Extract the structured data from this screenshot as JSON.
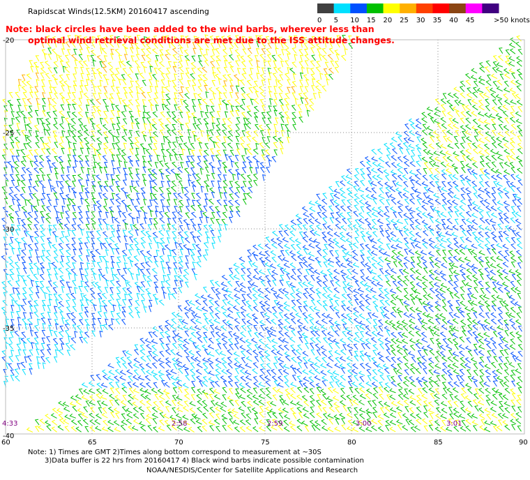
{
  "header": {
    "title": "Rapidscat Winds(12.5KM) 20160417 ascending"
  },
  "note": {
    "line1": "Note: black circles have been added to the wind barbs, wherever less than",
    "line2": "optimal wind retrieval conditions are met due to the ISS attitude changes."
  },
  "legend": {
    "unit_label": ">50 knots",
    "ticks": [
      "0",
      "5",
      "10",
      "15",
      "20",
      "25",
      "30",
      "35",
      "40",
      "45"
    ],
    "colors": [
      "#404040",
      "#00e0ff",
      "#0050ff",
      "#00c000",
      "#ffff00",
      "#ffb000",
      "#ff4000",
      "#ff0000",
      "#8b4513",
      "#ff00ff",
      "#400080"
    ]
  },
  "axes": {
    "lat_labels": [
      "-20",
      "-25",
      "-30",
      "-35",
      "-40"
    ],
    "lon_labels": [
      "60",
      "65",
      "70",
      "75",
      "80",
      "85",
      "90"
    ]
  },
  "pass_times": [
    "4:33",
    "2:58",
    "2:59",
    "3:00",
    "3:01"
  ],
  "footer": {
    "line1": "Note: 1) Times are GMT 2)Times along bottom correspond to measurement at ~30S",
    "line2": "3)Data buffer is 22 hrs from 20160417 4) Black wind barbs indicate possible contamination",
    "line3": "NOAA/NESDIS/Center for Satellite Applications and Research"
  },
  "colors": {
    "note_red": "#ff0000",
    "time_purple": "#800080",
    "grid": "#888888"
  }
}
